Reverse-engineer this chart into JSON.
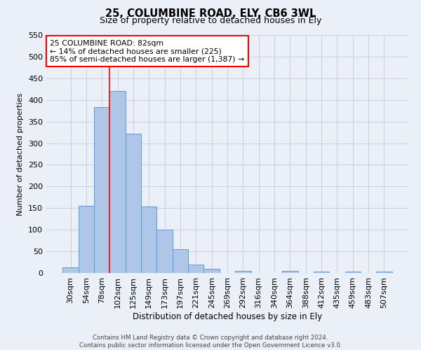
{
  "title_line1": "25, COLUMBINE ROAD, ELY, CB6 3WL",
  "title_line2": "Size of property relative to detached houses in Ely",
  "xlabel": "Distribution of detached houses by size in Ely",
  "ylabel": "Number of detached properties",
  "bar_labels": [
    "30sqm",
    "54sqm",
    "78sqm",
    "102sqm",
    "125sqm",
    "149sqm",
    "173sqm",
    "197sqm",
    "221sqm",
    "245sqm",
    "269sqm",
    "292sqm",
    "316sqm",
    "340sqm",
    "364sqm",
    "388sqm",
    "412sqm",
    "435sqm",
    "459sqm",
    "483sqm",
    "507sqm"
  ],
  "bar_values": [
    13,
    156,
    383,
    420,
    322,
    153,
    100,
    55,
    19,
    10,
    0,
    5,
    0,
    0,
    5,
    0,
    4,
    0,
    3,
    0,
    4
  ],
  "bar_color": "#aec6e8",
  "bar_edge_color": "#5b9bd5",
  "vline_x_index": 2,
  "vline_color": "red",
  "annotation_text": "25 COLUMBINE ROAD: 82sqm\n← 14% of detached houses are smaller (225)\n85% of semi-detached houses are larger (1,387) →",
  "annotation_box_color": "white",
  "annotation_box_edge": "red",
  "ylim": [
    0,
    550
  ],
  "yticks": [
    0,
    50,
    100,
    150,
    200,
    250,
    300,
    350,
    400,
    450,
    500,
    550
  ],
  "grid_color": "#c8d0e0",
  "footer": "Contains HM Land Registry data © Crown copyright and database right 2024.\nContains public sector information licensed under the Open Government Licence v3.0.",
  "bg_color": "#eaeff8"
}
